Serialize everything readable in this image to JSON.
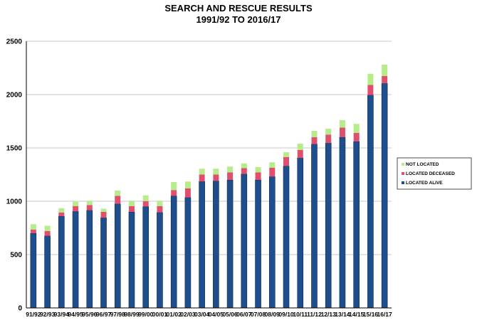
{
  "chart_data": {
    "type": "bar",
    "stacked": true,
    "title": "SEARCH AND RESCUE RESULTS",
    "subtitle": "1991/92 TO 2016/17",
    "ylim": [
      0,
      2500
    ],
    "yticks": [
      0,
      500,
      1000,
      1500,
      2000,
      2500
    ],
    "grid": true,
    "legend_position": "right",
    "categories": [
      "91/92",
      "92/93",
      "93/94",
      "94/95",
      "95/96",
      "96/97",
      "97/98",
      "98/99",
      "99/00",
      "00/01",
      "01/02",
      "02/03",
      "03/04",
      "04/05",
      "05/06",
      "06/07",
      "07/08",
      "08/09",
      "09/10",
      "10/11",
      "11/12",
      "12/13",
      "13/14",
      "14/15",
      "15/16",
      "16/17"
    ],
    "series": [
      {
        "name": "LOCATED ALIVE",
        "color": "#1f4e8c",
        "values": [
          700,
          675,
          860,
          905,
          915,
          845,
          975,
          900,
          950,
          895,
          1050,
          1035,
          1185,
          1190,
          1200,
          1255,
          1200,
          1230,
          1330,
          1405,
          1535,
          1545,
          1600,
          1560,
          1995,
          2105
        ]
      },
      {
        "name": "LOCATED DECEASED",
        "color": "#e0506e",
        "values": [
          35,
          45,
          35,
          50,
          50,
          55,
          75,
          55,
          50,
          60,
          55,
          85,
          65,
          60,
          70,
          55,
          70,
          85,
          85,
          75,
          65,
          80,
          90,
          80,
          95,
          70
        ]
      },
      {
        "name": "NOT LOCATED",
        "color": "#b6ec8a",
        "values": [
          50,
          50,
          40,
          40,
          40,
          30,
          50,
          50,
          55,
          50,
          75,
          65,
          55,
          55,
          55,
          45,
          50,
          50,
          45,
          60,
          60,
          55,
          70,
          85,
          105,
          105
        ]
      }
    ]
  }
}
